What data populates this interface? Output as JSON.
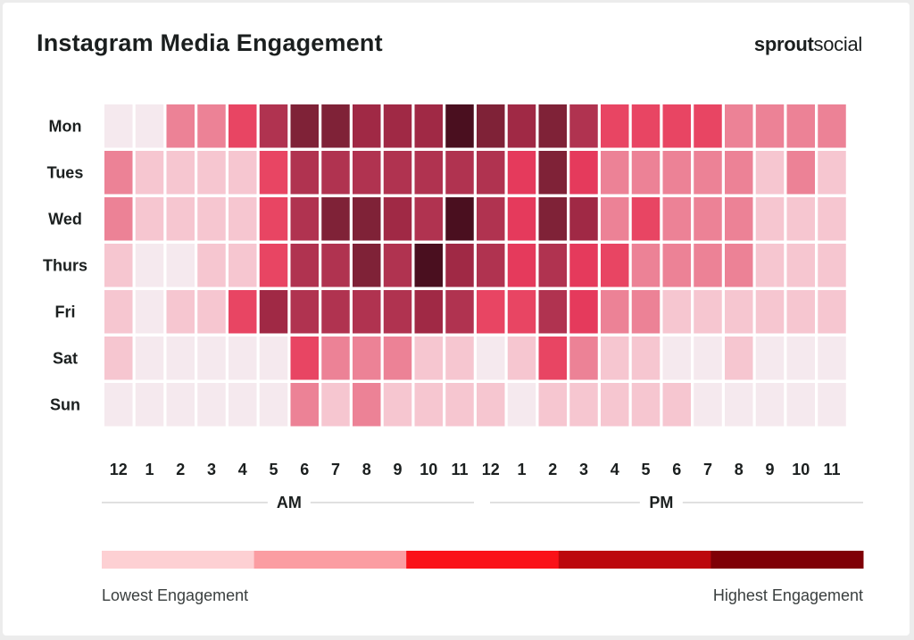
{
  "brand": {
    "part1": "sprout",
    "part2": "social"
  },
  "chart_data": {
    "type": "heatmap",
    "title": "Instagram Media Engagement",
    "rows": [
      "Mon",
      "Tues",
      "Wed",
      "Thurs",
      "Fri",
      "Sat",
      "Sun"
    ],
    "columns": [
      "12",
      "1",
      "2",
      "3",
      "4",
      "5",
      "6",
      "7",
      "8",
      "9",
      "10",
      "11",
      "12",
      "1",
      "2",
      "3",
      "4",
      "5",
      "6",
      "7",
      "8",
      "9",
      "10",
      "11"
    ],
    "column_groups": [
      {
        "label": "AM",
        "start": 0,
        "end": 11
      },
      {
        "label": "PM",
        "start": 12,
        "end": 23
      }
    ],
    "value_range": [
      0,
      9
    ],
    "values": [
      [
        0,
        0,
        3,
        3,
        4,
        6,
        8,
        8,
        7,
        7,
        7,
        9,
        8,
        7,
        8,
        6,
        4,
        4,
        4,
        4,
        3,
        3,
        3,
        3
      ],
      [
        3,
        1,
        1,
        1,
        1,
        4,
        6,
        6,
        6,
        6,
        6,
        6,
        6,
        5,
        8,
        5,
        3,
        3,
        3,
        3,
        3,
        1,
        3,
        1
      ],
      [
        3,
        1,
        1,
        1,
        1,
        4,
        6,
        8,
        8,
        7,
        6,
        9,
        6,
        5,
        8,
        7,
        3,
        4,
        3,
        3,
        3,
        1,
        1,
        1
      ],
      [
        1,
        0,
        0,
        1,
        1,
        4,
        6,
        6,
        8,
        6,
        9,
        7,
        6,
        5,
        6,
        5,
        4,
        3,
        3,
        3,
        3,
        1,
        1,
        1
      ],
      [
        1,
        0,
        1,
        1,
        4,
        7,
        6,
        6,
        6,
        6,
        7,
        6,
        4,
        4,
        6,
        5,
        3,
        3,
        1,
        1,
        1,
        1,
        1,
        1
      ],
      [
        1,
        0,
        0,
        0,
        0,
        0,
        4,
        3,
        3,
        3,
        1,
        1,
        0,
        1,
        4,
        3,
        1,
        1,
        0,
        0,
        1,
        0,
        0,
        0
      ],
      [
        0,
        0,
        0,
        0,
        0,
        0,
        3,
        1,
        3,
        1,
        1,
        1,
        1,
        0,
        1,
        1,
        1,
        1,
        1,
        0,
        0,
        0,
        0,
        0
      ]
    ],
    "cell_colors": [
      "#f5e9ee",
      "#f6c6d0",
      "#f0a4b5",
      "#ec8296",
      "#e84563",
      "#e53a5c",
      "#b03350",
      "#a02945",
      "#7f2237",
      "#4a0f1f"
    ],
    "legend": {
      "low_label": "Lowest Engagement",
      "high_label": "Highest Engagement",
      "colors": [
        "#fdd0d3",
        "#fb9da2",
        "#fa1218",
        "#bc080d",
        "#7f0006"
      ]
    },
    "xlabel": "",
    "ylabel": ""
  }
}
